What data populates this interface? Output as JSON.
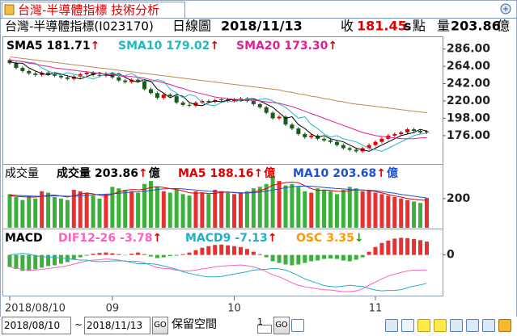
{
  "window": {
    "title": "台灣-半導體指標 技術分析"
  },
  "header": {
    "name": "台灣-半導體指標(I023170)",
    "period": "日線圖",
    "date": "2018/11/13",
    "close_label": "收",
    "close": 181.45,
    "flag": "s",
    "unit": "點",
    "volume_label": "量",
    "volume": 203.86,
    "volume_unit": "億"
  },
  "chart_data": [
    {
      "type": "candlestick",
      "up_color": "#e00000",
      "down_color": "#1a5a1a",
      "ylim": [
        141,
        299
      ],
      "yticks": [
        {
          "value": 286,
          "label": "286.00"
        },
        {
          "value": 264,
          "label": "264.00"
        },
        {
          "value": 242,
          "label": "242.00"
        },
        {
          "value": 220,
          "label": "220.00"
        },
        {
          "value": 198,
          "label": "198.00"
        },
        {
          "value": 176,
          "label": "176.00"
        }
      ],
      "open": [
        272,
        268,
        262,
        258,
        255,
        253,
        256,
        254,
        252,
        250,
        248,
        251,
        254,
        256,
        253,
        252,
        255,
        250,
        246,
        244,
        247,
        245,
        235,
        230,
        224,
        228,
        226,
        218,
        215,
        214,
        218,
        220,
        219,
        221,
        222,
        220,
        222,
        223,
        220,
        216,
        212,
        205,
        198,
        200,
        190,
        185,
        178,
        174,
        176,
        172,
        170,
        168,
        164,
        160,
        158,
        156,
        160,
        164,
        168,
        172,
        176,
        178,
        180,
        184,
        182,
        180
      ],
      "high": [
        274,
        270,
        264,
        260,
        257,
        258,
        258,
        256,
        254,
        252,
        253,
        256,
        258,
        258,
        255,
        257,
        257,
        252,
        248,
        249,
        249,
        247,
        237,
        232,
        230,
        230,
        228,
        220,
        217,
        220,
        222,
        222,
        223,
        224,
        224,
        224,
        225,
        225,
        222,
        218,
        214,
        207,
        202,
        202,
        192,
        187,
        180,
        178,
        178,
        174,
        172,
        170,
        166,
        162,
        160,
        162,
        166,
        170,
        174,
        178,
        180,
        182,
        186,
        186,
        184,
        183
      ],
      "low": [
        266,
        260,
        256,
        253,
        251,
        251,
        252,
        250,
        248,
        246,
        246,
        249,
        252,
        251,
        250,
        250,
        248,
        244,
        242,
        242,
        243,
        233,
        228,
        222,
        222,
        224,
        216,
        213,
        212,
        212,
        216,
        217,
        217,
        219,
        218,
        218,
        220,
        218,
        214,
        210,
        203,
        196,
        196,
        188,
        183,
        176,
        172,
        172,
        170,
        168,
        166,
        162,
        158,
        156,
        154,
        154,
        158,
        162,
        166,
        170,
        174,
        176,
        178,
        180,
        178,
        178
      ],
      "close": [
        268,
        262,
        258,
        255,
        253,
        256,
        254,
        252,
        250,
        248,
        251,
        254,
        256,
        253,
        252,
        255,
        250,
        246,
        244,
        247,
        245,
        235,
        230,
        224,
        228,
        226,
        218,
        215,
        214,
        218,
        220,
        219,
        221,
        222,
        220,
        222,
        223,
        220,
        216,
        212,
        205,
        198,
        200,
        190,
        185,
        178,
        174,
        176,
        172,
        170,
        168,
        164,
        160,
        158,
        156,
        160,
        164,
        168,
        172,
        176,
        178,
        180,
        184,
        182,
        180,
        181.45
      ],
      "series": [
        {
          "name": "SMA5",
          "value": 181.71,
          "arrow": "↑",
          "arrow_color": "#e00000",
          "color": "#000000",
          "values": [
            270,
            268,
            268,
            262,
            258,
            255,
            253,
            256,
            254,
            252,
            250,
            248,
            251,
            254,
            256,
            253,
            252,
            255,
            250,
            246,
            244,
            247,
            245,
            235,
            230,
            224,
            228,
            226,
            218,
            215,
            214,
            218,
            220,
            219,
            221,
            222,
            220,
            222,
            223,
            220,
            216,
            212,
            205,
            198,
            200,
            190,
            185,
            178,
            174,
            176,
            172,
            170,
            168,
            164,
            160,
            158,
            156,
            160,
            164,
            168,
            172,
            176,
            178,
            180,
            184,
            181.71
          ]
        },
        {
          "name": "SMA10",
          "value": 179.02,
          "arrow": "↑",
          "arrow_color": "#e00000",
          "color": "#20b8c0",
          "values": [
            272,
            271,
            270,
            269,
            268,
            262,
            258,
            255,
            253,
            256,
            254,
            252,
            250,
            248,
            251,
            254,
            256,
            253,
            252,
            255,
            250,
            246,
            244,
            247,
            245,
            235,
            230,
            224,
            228,
            226,
            218,
            215,
            214,
            218,
            220,
            219,
            221,
            222,
            220,
            222,
            223,
            220,
            216,
            212,
            205,
            198,
            200,
            190,
            185,
            178,
            174,
            176,
            172,
            170,
            168,
            164,
            160,
            158,
            156,
            160,
            164,
            168,
            172,
            176,
            178,
            179.02
          ]
        },
        {
          "name": "SMA20",
          "value": 173.3,
          "value_label": "173.30",
          "arrow": "↑",
          "arrow_color": "#e00000",
          "color": "#e0209a",
          "values": [
            272,
            271,
            270,
            268,
            267,
            265,
            264,
            262,
            261,
            260,
            259,
            258,
            257,
            256,
            255,
            254,
            253,
            252,
            251,
            251,
            250,
            249,
            247,
            245,
            243,
            241,
            238,
            236,
            233,
            231,
            229,
            227,
            225,
            224,
            223,
            222,
            222,
            221,
            221,
            220,
            219,
            218,
            217,
            215,
            213,
            210,
            207,
            204,
            201,
            198,
            195,
            192,
            189,
            186,
            183,
            180,
            178,
            176,
            175,
            174,
            173,
            172,
            172,
            172,
            173,
            173.3
          ]
        },
        {
          "color": "#c08a50",
          "values": [
            276,
            275,
            274,
            273,
            272,
            271,
            270,
            269,
            268,
            267,
            266,
            265,
            264,
            263,
            262,
            261,
            260,
            259,
            258,
            257,
            256,
            255,
            254,
            253,
            252,
            251,
            250,
            249,
            248,
            247,
            246,
            245,
            244,
            243,
            242,
            241,
            240,
            239,
            238,
            237,
            236,
            235,
            234,
            232,
            231,
            229,
            228,
            226,
            225,
            223,
            222,
            220,
            219,
            217,
            216,
            215,
            214,
            213,
            212,
            211,
            210,
            209,
            208,
            207,
            206,
            205
          ]
        }
      ]
    },
    {
      "type": "bar",
      "title": "成交量",
      "up_color": "#e83030",
      "down_color": "#3cb03c",
      "ylim": [
        0,
        420
      ],
      "yticks": [
        200
      ],
      "series": [
        {
          "kind": "bar",
          "name": "成交量",
          "value": 203.86,
          "arrow": "↑",
          "arrow_color": "#e00000",
          "unit": "億",
          "color": "#000000",
          "values": [
            230,
            210,
            190,
            220,
            200,
            250,
            240,
            210,
            200,
            190,
            260,
            250,
            240,
            220,
            200,
            230,
            280,
            270,
            260,
            250,
            240,
            300,
            320,
            280,
            250,
            240,
            260,
            230,
            220,
            250,
            240,
            230,
            260,
            250,
            240,
            230,
            240,
            250,
            270,
            280,
            300,
            355,
            320,
            290,
            300,
            280,
            250,
            240,
            270,
            260,
            250,
            230,
            260,
            280,
            270,
            250,
            260,
            240,
            230,
            220,
            210,
            200,
            190,
            180,
            170,
            203.86
          ]
        },
        {
          "kind": "line",
          "name": "MA5",
          "value": 188.16,
          "arrow": "↑",
          "arrow_color": "#e00000",
          "unit": "億",
          "color": "#e00000",
          "values": [
            220,
            215,
            212,
            210,
            210,
            214,
            222,
            224,
            218,
            210,
            220,
            230,
            238,
            232,
            222,
            218,
            230,
            246,
            256,
            262,
            260,
            264,
            276,
            282,
            276,
            268,
            262,
            252,
            240,
            236,
            240,
            234,
            236,
            242,
            244,
            240,
            238,
            238,
            246,
            254,
            268,
            291,
            301,
            309,
            313,
            309,
            288,
            268,
            256,
            258,
            256,
            250,
            248,
            254,
            258,
            258,
            256,
            248,
            238,
            228,
            218,
            210,
            200,
            195,
            190,
            188.16
          ]
        },
        {
          "kind": "line",
          "name": "MA10",
          "value": 203.68,
          "arrow": "↑",
          "arrow_color": "#e00000",
          "unit": "億",
          "color": "#2050d0",
          "values": [
            225,
            222,
            220,
            218,
            216,
            215,
            216,
            218,
            218,
            216,
            215,
            218,
            222,
            226,
            228,
            230,
            232,
            236,
            240,
            244,
            246,
            250,
            256,
            262,
            266,
            268,
            268,
            266,
            262,
            258,
            254,
            250,
            248,
            246,
            244,
            242,
            240,
            238,
            240,
            244,
            250,
            258,
            266,
            274,
            280,
            284,
            286,
            284,
            280,
            276,
            272,
            268,
            266,
            262,
            260,
            258,
            256,
            254,
            248,
            242,
            236,
            228,
            222,
            216,
            210,
            203.68
          ]
        }
      ]
    },
    {
      "type": "macd",
      "title": "MACD",
      "up_color": "#e83030",
      "down_color": "#3cb03c",
      "ylim": [
        -10,
        6
      ],
      "yticks": [
        0
      ],
      "categories": [
        "2018/08/10",
        null,
        null,
        null,
        null,
        null,
        null,
        null,
        null,
        null,
        null,
        null,
        null,
        null,
        null,
        null,
        "09",
        null,
        null,
        null,
        null,
        null,
        null,
        null,
        null,
        null,
        null,
        null,
        null,
        null,
        null,
        null,
        null,
        null,
        null,
        "10",
        null,
        null,
        null,
        null,
        null,
        null,
        null,
        null,
        null,
        null,
        null,
        null,
        null,
        null,
        null,
        null,
        null,
        null,
        null,
        null,
        null,
        "11",
        null,
        null,
        null,
        null,
        null,
        null,
        null,
        null
      ],
      "series": [
        {
          "kind": "line",
          "name": "DIF12-26",
          "value": -3.78,
          "arrow": "↑",
          "arrow_color": "#e00000",
          "color": "#ff5fc0",
          "values": [
            -3,
            -3.3,
            -3.6,
            -3.8,
            -3.8,
            -3.6,
            -3.4,
            -3.2,
            -3,
            -2.7,
            -2.3,
            -1.9,
            -1.5,
            -1.3,
            -1.2,
            -1,
            -1.1,
            -1.3,
            -1.6,
            -1.6,
            -1.6,
            -2,
            -2.6,
            -3.2,
            -3.4,
            -3.5,
            -3.8,
            -4,
            -4,
            -3.8,
            -3.5,
            -3.3,
            -3,
            -2.8,
            -2.7,
            -2.6,
            -2.5,
            -2.7,
            -3,
            -3.5,
            -4.2,
            -5,
            -5.5,
            -6.2,
            -7,
            -7.6,
            -8,
            -8.2,
            -8.5,
            -8.7,
            -8.8,
            -9,
            -9.2,
            -9.2,
            -9,
            -8.5,
            -7.6,
            -6.8,
            -6,
            -5.3,
            -4.8,
            -4.4,
            -4,
            -3.8,
            -3.8,
            -3.78
          ]
        },
        {
          "kind": "line",
          "name": "MACD9",
          "value": -7.13,
          "arrow": "↑",
          "arrow_color": "#e00000",
          "color": "#20b0c8",
          "values": [
            0,
            0.2,
            0.4,
            0.2,
            -0.2,
            -0.4,
            -0.6,
            -0.6,
            -0.8,
            -0.9,
            -1.1,
            -1.3,
            -1.3,
            -1.6,
            -1.7,
            -1.6,
            -1.5,
            -1.5,
            -1.5,
            -1.9,
            -2.2,
            -2.2,
            -2.2,
            -2.4,
            -2.8,
            -3.2,
            -3.6,
            -4.2,
            -4.6,
            -5,
            -5.3,
            -5.5,
            -5.5,
            -5.4,
            -5.1,
            -4.8,
            -4.5,
            -4.2,
            -3.8,
            -3.7,
            -3.6,
            -3.4,
            -3.5,
            -3.8,
            -4.4,
            -5.2,
            -6,
            -6.6,
            -7.1,
            -7.7,
            -7.9,
            -8,
            -7.8,
            -7.6,
            -7.8,
            -7.9,
            -8.4,
            -8.8,
            -9,
            -8.9,
            -8.9,
            -8.7,
            -8.2,
            -7.8,
            -7.5,
            -7.13
          ]
        },
        {
          "kind": "bar",
          "name": "OSC",
          "value": 3.35,
          "arrow": "↓",
          "arrow_color": "#20a020",
          "color": "#ff9900",
          "values": [
            -3,
            -3.5,
            -4,
            -4,
            -3.6,
            -3.2,
            -2.8,
            -2.6,
            -2.2,
            -1.8,
            -1.2,
            -0.6,
            -0.2,
            0.3,
            0.5,
            0.6,
            0.4,
            0.2,
            -0.1,
            0.3,
            0.6,
            0.2,
            -0.4,
            -0.8,
            -0.6,
            -0.3,
            -0.2,
            0.2,
            0.6,
            1.2,
            1.8,
            2.2,
            2.5,
            2.6,
            2.4,
            2.2,
            2,
            1.5,
            0.8,
            0.2,
            -0.6,
            -1.6,
            -2,
            -2.4,
            -2.6,
            -2.4,
            -2,
            -1.6,
            -1.4,
            -1,
            -0.9,
            -1,
            -1.4,
            -1.6,
            -1.2,
            -0.6,
            0.8,
            2,
            3,
            3.6,
            4.1,
            4.3,
            4.2,
            4,
            3.7,
            3.35
          ]
        }
      ]
    }
  ],
  "toolbar": {
    "start": "2018/08/10",
    "sep": "~",
    "end": "2018/11/13",
    "go": "GO",
    "keep_label": "保留空間",
    "keep_value": "1",
    "go2": "GO"
  }
}
